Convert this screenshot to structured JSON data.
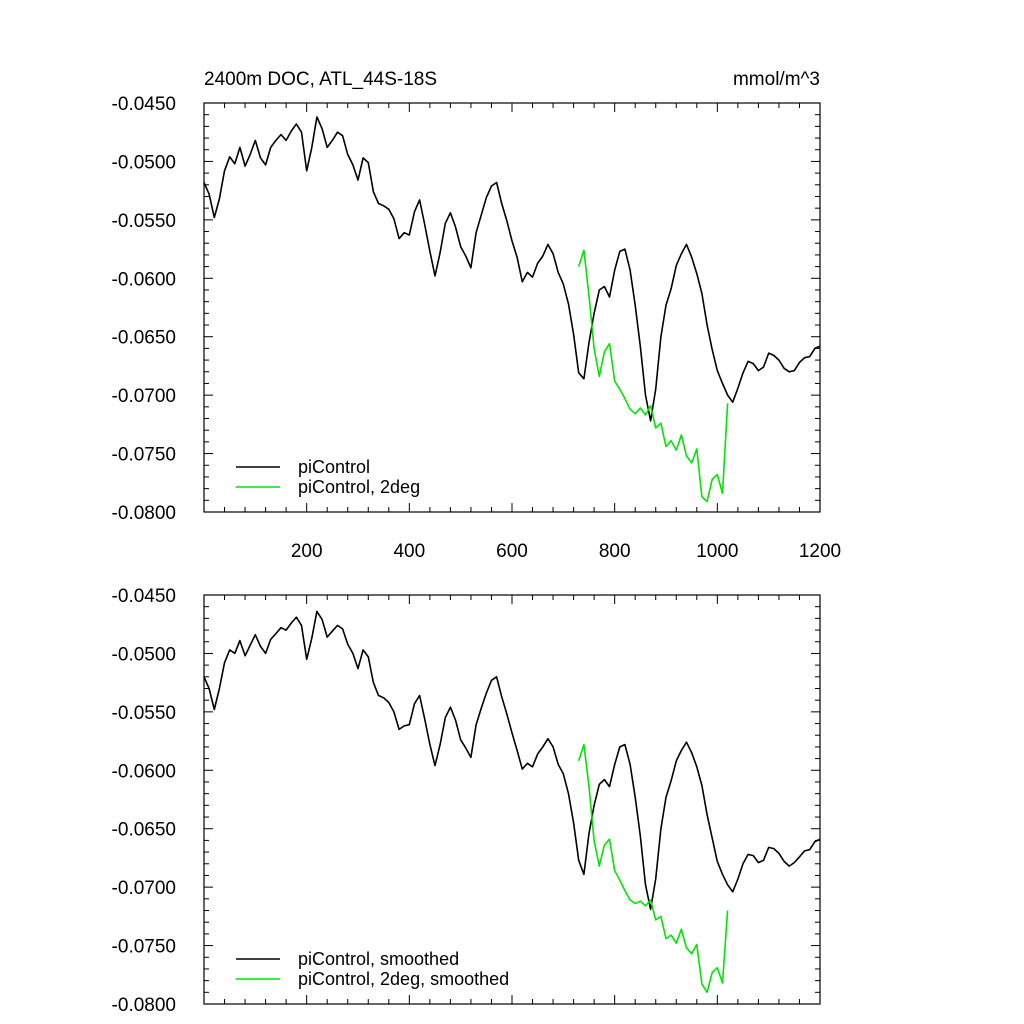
{
  "figure": {
    "title": "2400m DOC, ATL_44S-18S",
    "units": "mmol/m^3"
  },
  "colors": {
    "black": "#000000",
    "green": "#00e600"
  },
  "chart_data": [
    {
      "type": "line",
      "title": "2400m DOC, ATL_44S-18S",
      "units_label": "mmol/m^3",
      "xlabel": "",
      "ylabel": "",
      "xlim": [
        0,
        1200
      ],
      "ylim": [
        -0.08,
        -0.045
      ],
      "xticks": [
        200,
        400,
        600,
        800,
        1000,
        1200
      ],
      "xtick_labels": [
        "200",
        "400",
        "600",
        "800",
        "1000",
        "1200"
      ],
      "yticks": [
        -0.045,
        -0.05,
        -0.055,
        -0.06,
        -0.065,
        -0.07,
        -0.075,
        -0.08
      ],
      "ytick_labels": [
        "-0.0450",
        "-0.0500",
        "-0.0550",
        "-0.0600",
        "-0.0650",
        "-0.0700",
        "-0.0750",
        "-0.0800"
      ],
      "grid": false,
      "legend_position": "bottom-left",
      "series": [
        {
          "name": "piControl",
          "color": "#000000",
          "x": [
            0,
            10,
            20,
            30,
            40,
            50,
            60,
            70,
            80,
            90,
            100,
            110,
            120,
            130,
            140,
            150,
            160,
            170,
            180,
            190,
            200,
            210,
            220,
            230,
            240,
            250,
            260,
            270,
            280,
            290,
            300,
            310,
            320,
            330,
            340,
            350,
            360,
            370,
            380,
            390,
            400,
            410,
            420,
            430,
            440,
            450,
            460,
            470,
            480,
            490,
            500,
            510,
            520,
            530,
            540,
            550,
            560,
            570,
            580,
            590,
            600,
            610,
            620,
            630,
            640,
            650,
            660,
            670,
            680,
            690,
            700,
            710,
            720,
            730,
            740,
            750,
            760,
            770,
            780,
            790,
            800,
            810,
            820,
            830,
            840,
            850,
            860,
            870,
            880,
            890,
            900,
            910,
            920,
            930,
            940,
            950,
            960,
            970,
            980,
            990,
            1000,
            1010,
            1020,
            1030,
            1040,
            1050,
            1060,
            1070,
            1080,
            1090,
            1100,
            1110,
            1120,
            1130,
            1140,
            1150,
            1160,
            1170,
            1180,
            1190,
            1200
          ],
          "y": [
            -0.0518,
            -0.0528,
            -0.0548,
            -0.0532,
            -0.0508,
            -0.0496,
            -0.0502,
            -0.0488,
            -0.0504,
            -0.0494,
            -0.0482,
            -0.0497,
            -0.0503,
            -0.0488,
            -0.0482,
            -0.0477,
            -0.0482,
            -0.0474,
            -0.0468,
            -0.0475,
            -0.0508,
            -0.0488,
            -0.0462,
            -0.0472,
            -0.0488,
            -0.0482,
            -0.0475,
            -0.0478,
            -0.0494,
            -0.0503,
            -0.0516,
            -0.0497,
            -0.0501,
            -0.0526,
            -0.0536,
            -0.0538,
            -0.0541,
            -0.0549,
            -0.0566,
            -0.0561,
            -0.0563,
            -0.0543,
            -0.0533,
            -0.0554,
            -0.0577,
            -0.0598,
            -0.0578,
            -0.0553,
            -0.0544,
            -0.0556,
            -0.0573,
            -0.0581,
            -0.0591,
            -0.0561,
            -0.0546,
            -0.0531,
            -0.0521,
            -0.0518,
            -0.0536,
            -0.0551,
            -0.0568,
            -0.0582,
            -0.0603,
            -0.0595,
            -0.0599,
            -0.0587,
            -0.0581,
            -0.0571,
            -0.0579,
            -0.0595,
            -0.0605,
            -0.0622,
            -0.0648,
            -0.0681,
            -0.0686,
            -0.0655,
            -0.063,
            -0.061,
            -0.0607,
            -0.0616,
            -0.0593,
            -0.0577,
            -0.0575,
            -0.0593,
            -0.0623,
            -0.0658,
            -0.07,
            -0.0722,
            -0.0695,
            -0.065,
            -0.0623,
            -0.0609,
            -0.0589,
            -0.0579,
            -0.0571,
            -0.0582,
            -0.0596,
            -0.0613,
            -0.064,
            -0.0661,
            -0.0679,
            -0.069,
            -0.07,
            -0.0706,
            -0.0694,
            -0.0681,
            -0.0671,
            -0.0673,
            -0.0679,
            -0.0676,
            -0.0664,
            -0.0666,
            -0.067,
            -0.0677,
            -0.068,
            -0.0679,
            -0.0672,
            -0.0668,
            -0.0667,
            -0.066,
            -0.0658
          ]
        },
        {
          "name": "piControl, 2deg",
          "color": "#00e600",
          "x": [
            730,
            740,
            750,
            760,
            770,
            780,
            790,
            800,
            810,
            820,
            830,
            840,
            850,
            860,
            870,
            880,
            890,
            900,
            910,
            920,
            930,
            940,
            950,
            960,
            970,
            980,
            990,
            1000,
            1010,
            1020
          ],
          "y": [
            -0.059,
            -0.0576,
            -0.0615,
            -0.066,
            -0.0684,
            -0.0663,
            -0.0656,
            -0.0688,
            -0.0695,
            -0.0703,
            -0.0712,
            -0.0716,
            -0.0711,
            -0.0717,
            -0.0709,
            -0.0728,
            -0.0724,
            -0.0744,
            -0.0739,
            -0.0747,
            -0.0734,
            -0.0752,
            -0.0758,
            -0.0746,
            -0.0787,
            -0.0791,
            -0.0772,
            -0.0768,
            -0.0784,
            -0.0707
          ]
        }
      ]
    },
    {
      "type": "line",
      "title": "",
      "xlabel": "",
      "ylabel": "",
      "xlim": [
        0,
        1200
      ],
      "ylim": [
        -0.08,
        -0.045
      ],
      "xticks": [
        200,
        400,
        600,
        800,
        1000,
        1200
      ],
      "yticks": [
        -0.045,
        -0.05,
        -0.055,
        -0.06,
        -0.065,
        -0.07,
        -0.075,
        -0.08
      ],
      "ytick_labels": [
        "-0.0450",
        "-0.0500",
        "-0.0550",
        "-0.0600",
        "-0.0650",
        "-0.0700",
        "-0.0750",
        "-0.0800"
      ],
      "grid": false,
      "legend_position": "bottom-left",
      "series": [
        {
          "name": "piControl, smoothed",
          "color": "#000000",
          "x": [
            0,
            10,
            20,
            30,
            40,
            50,
            60,
            70,
            80,
            90,
            100,
            110,
            120,
            130,
            140,
            150,
            160,
            170,
            180,
            190,
            200,
            210,
            220,
            230,
            240,
            250,
            260,
            270,
            280,
            290,
            300,
            310,
            320,
            330,
            340,
            350,
            360,
            370,
            380,
            390,
            400,
            410,
            420,
            430,
            440,
            450,
            460,
            470,
            480,
            490,
            500,
            510,
            520,
            530,
            540,
            550,
            560,
            570,
            580,
            590,
            600,
            610,
            620,
            630,
            640,
            650,
            660,
            670,
            680,
            690,
            700,
            710,
            720,
            730,
            740,
            750,
            760,
            770,
            780,
            790,
            800,
            810,
            820,
            830,
            840,
            850,
            860,
            870,
            880,
            890,
            900,
            910,
            920,
            930,
            940,
            950,
            960,
            970,
            980,
            990,
            1000,
            1010,
            1020,
            1030,
            1040,
            1050,
            1060,
            1070,
            1080,
            1090,
            1100,
            1110,
            1120,
            1130,
            1140,
            1150,
            1160,
            1170,
            1180,
            1190,
            1200
          ],
          "y": [
            -0.052,
            -0.053,
            -0.0548,
            -0.053,
            -0.0508,
            -0.0497,
            -0.05,
            -0.0489,
            -0.0502,
            -0.0493,
            -0.0484,
            -0.0494,
            -0.05,
            -0.0488,
            -0.0483,
            -0.0478,
            -0.048,
            -0.0474,
            -0.0469,
            -0.0476,
            -0.0505,
            -0.0487,
            -0.0464,
            -0.0471,
            -0.0486,
            -0.0481,
            -0.0476,
            -0.0479,
            -0.0492,
            -0.05,
            -0.0513,
            -0.0497,
            -0.0503,
            -0.0525,
            -0.0536,
            -0.0538,
            -0.0542,
            -0.055,
            -0.0565,
            -0.0562,
            -0.0561,
            -0.0543,
            -0.0536,
            -0.0556,
            -0.0578,
            -0.0596,
            -0.0578,
            -0.0555,
            -0.0546,
            -0.0557,
            -0.0574,
            -0.0581,
            -0.0589,
            -0.0561,
            -0.0547,
            -0.0534,
            -0.0523,
            -0.052,
            -0.0537,
            -0.0552,
            -0.0568,
            -0.0583,
            -0.0599,
            -0.0594,
            -0.0597,
            -0.0586,
            -0.058,
            -0.0573,
            -0.058,
            -0.0595,
            -0.0603,
            -0.062,
            -0.0645,
            -0.0677,
            -0.0689,
            -0.0654,
            -0.063,
            -0.0612,
            -0.0608,
            -0.0614,
            -0.0595,
            -0.058,
            -0.0578,
            -0.0595,
            -0.0623,
            -0.0656,
            -0.0698,
            -0.0719,
            -0.0693,
            -0.065,
            -0.0623,
            -0.0609,
            -0.0592,
            -0.0583,
            -0.0576,
            -0.0585,
            -0.0597,
            -0.0613,
            -0.0638,
            -0.0658,
            -0.0678,
            -0.0689,
            -0.0698,
            -0.0704,
            -0.0693,
            -0.068,
            -0.0672,
            -0.0673,
            -0.0679,
            -0.0677,
            -0.0666,
            -0.0667,
            -0.0671,
            -0.0678,
            -0.0682,
            -0.0679,
            -0.0674,
            -0.0669,
            -0.0668,
            -0.0661,
            -0.0659
          ]
        },
        {
          "name": "piControl, 2deg, smoothed",
          "color": "#00e600",
          "x": [
            730,
            740,
            750,
            760,
            770,
            780,
            790,
            800,
            810,
            820,
            830,
            840,
            850,
            860,
            870,
            880,
            890,
            900,
            910,
            920,
            930,
            940,
            950,
            960,
            970,
            980,
            990,
            1000,
            1010,
            1020
          ],
          "y": [
            -0.0592,
            -0.0578,
            -0.0614,
            -0.066,
            -0.0682,
            -0.0664,
            -0.0659,
            -0.0686,
            -0.0694,
            -0.0703,
            -0.0711,
            -0.0714,
            -0.0712,
            -0.0716,
            -0.0711,
            -0.0728,
            -0.0725,
            -0.0744,
            -0.0741,
            -0.0748,
            -0.0736,
            -0.0752,
            -0.0757,
            -0.0749,
            -0.0783,
            -0.079,
            -0.0773,
            -0.0769,
            -0.0782,
            -0.072
          ]
        }
      ]
    }
  ]
}
